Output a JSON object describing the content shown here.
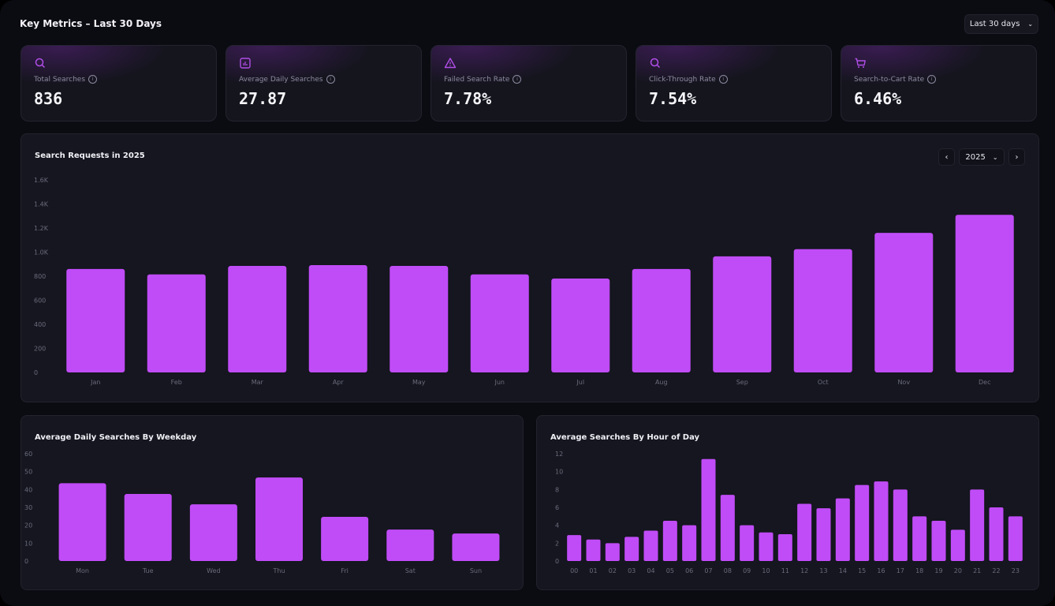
{
  "header": {
    "title": "Key Metrics – Last 30 Days",
    "range_select": "Last 30 days"
  },
  "metrics": [
    {
      "icon": "search-icon",
      "label": "Total Searches",
      "value": "836"
    },
    {
      "icon": "bar-chart-icon",
      "label": "Average Daily Searches",
      "value": "27.87"
    },
    {
      "icon": "warning-triangle-icon",
      "label": "Failed Search Rate",
      "value": "7.78%"
    },
    {
      "icon": "search-icon",
      "label": "Click-Through Rate",
      "value": "7.54%"
    },
    {
      "icon": "cart-icon",
      "label": "Search-to-Cart Rate",
      "value": "6.46%"
    }
  ],
  "colors": {
    "accent": "#c04cf7",
    "background": "#0b0b12",
    "panel": "#15161f"
  },
  "monthly": {
    "title": "Search Requests in 2025",
    "year_select": "2025",
    "prev": "‹",
    "next": "›"
  },
  "weekday": {
    "title": "Average Daily Searches By Weekday"
  },
  "hourly": {
    "title": "Average Searches By Hour of Day"
  },
  "chart_data": [
    {
      "type": "bar",
      "title": "Search Requests in 2025",
      "categories": [
        "Jan",
        "Feb",
        "Mar",
        "Apr",
        "May",
        "Jun",
        "Jul",
        "Aug",
        "Sep",
        "Oct",
        "Nov",
        "Dec"
      ],
      "values": [
        860,
        815,
        885,
        892,
        885,
        815,
        780,
        860,
        965,
        1025,
        1160,
        1310
      ],
      "ylim": [
        0,
        1600
      ],
      "yticks": [
        "0",
        "200",
        "400",
        "600",
        "800",
        "1.0K",
        "1.2K",
        "1.4K",
        "1.6K"
      ],
      "grid": false
    },
    {
      "type": "bar",
      "title": "Average Daily Searches By Weekday",
      "categories": [
        "Mon",
        "Tue",
        "Wed",
        "Thu",
        "Fri",
        "Sat",
        "Sun"
      ],
      "values": [
        43.5,
        37.5,
        31.7,
        46.7,
        24.7,
        17.6,
        15.4
      ],
      "ylim": [
        0,
        60
      ],
      "yticks": [
        "0",
        "10",
        "20",
        "30",
        "40",
        "50",
        "60"
      ],
      "grid": false
    },
    {
      "type": "bar",
      "title": "Average Searches By Hour of Day",
      "categories": [
        "00",
        "01",
        "02",
        "03",
        "04",
        "05",
        "06",
        "07",
        "08",
        "09",
        "10",
        "11",
        "12",
        "13",
        "14",
        "15",
        "16",
        "17",
        "18",
        "19",
        "20",
        "21",
        "22",
        "23"
      ],
      "values": [
        2.9,
        2.4,
        2,
        2.7,
        3.4,
        4.5,
        4,
        11.4,
        7.4,
        4,
        3.2,
        3,
        6.4,
        5.9,
        7,
        8.5,
        8.9,
        8,
        5,
        4.5,
        3.5,
        8,
        6,
        5
      ],
      "ylim": [
        0,
        12
      ],
      "yticks": [
        "0",
        "2",
        "4",
        "6",
        "8",
        "10",
        "12"
      ],
      "grid": false
    }
  ]
}
